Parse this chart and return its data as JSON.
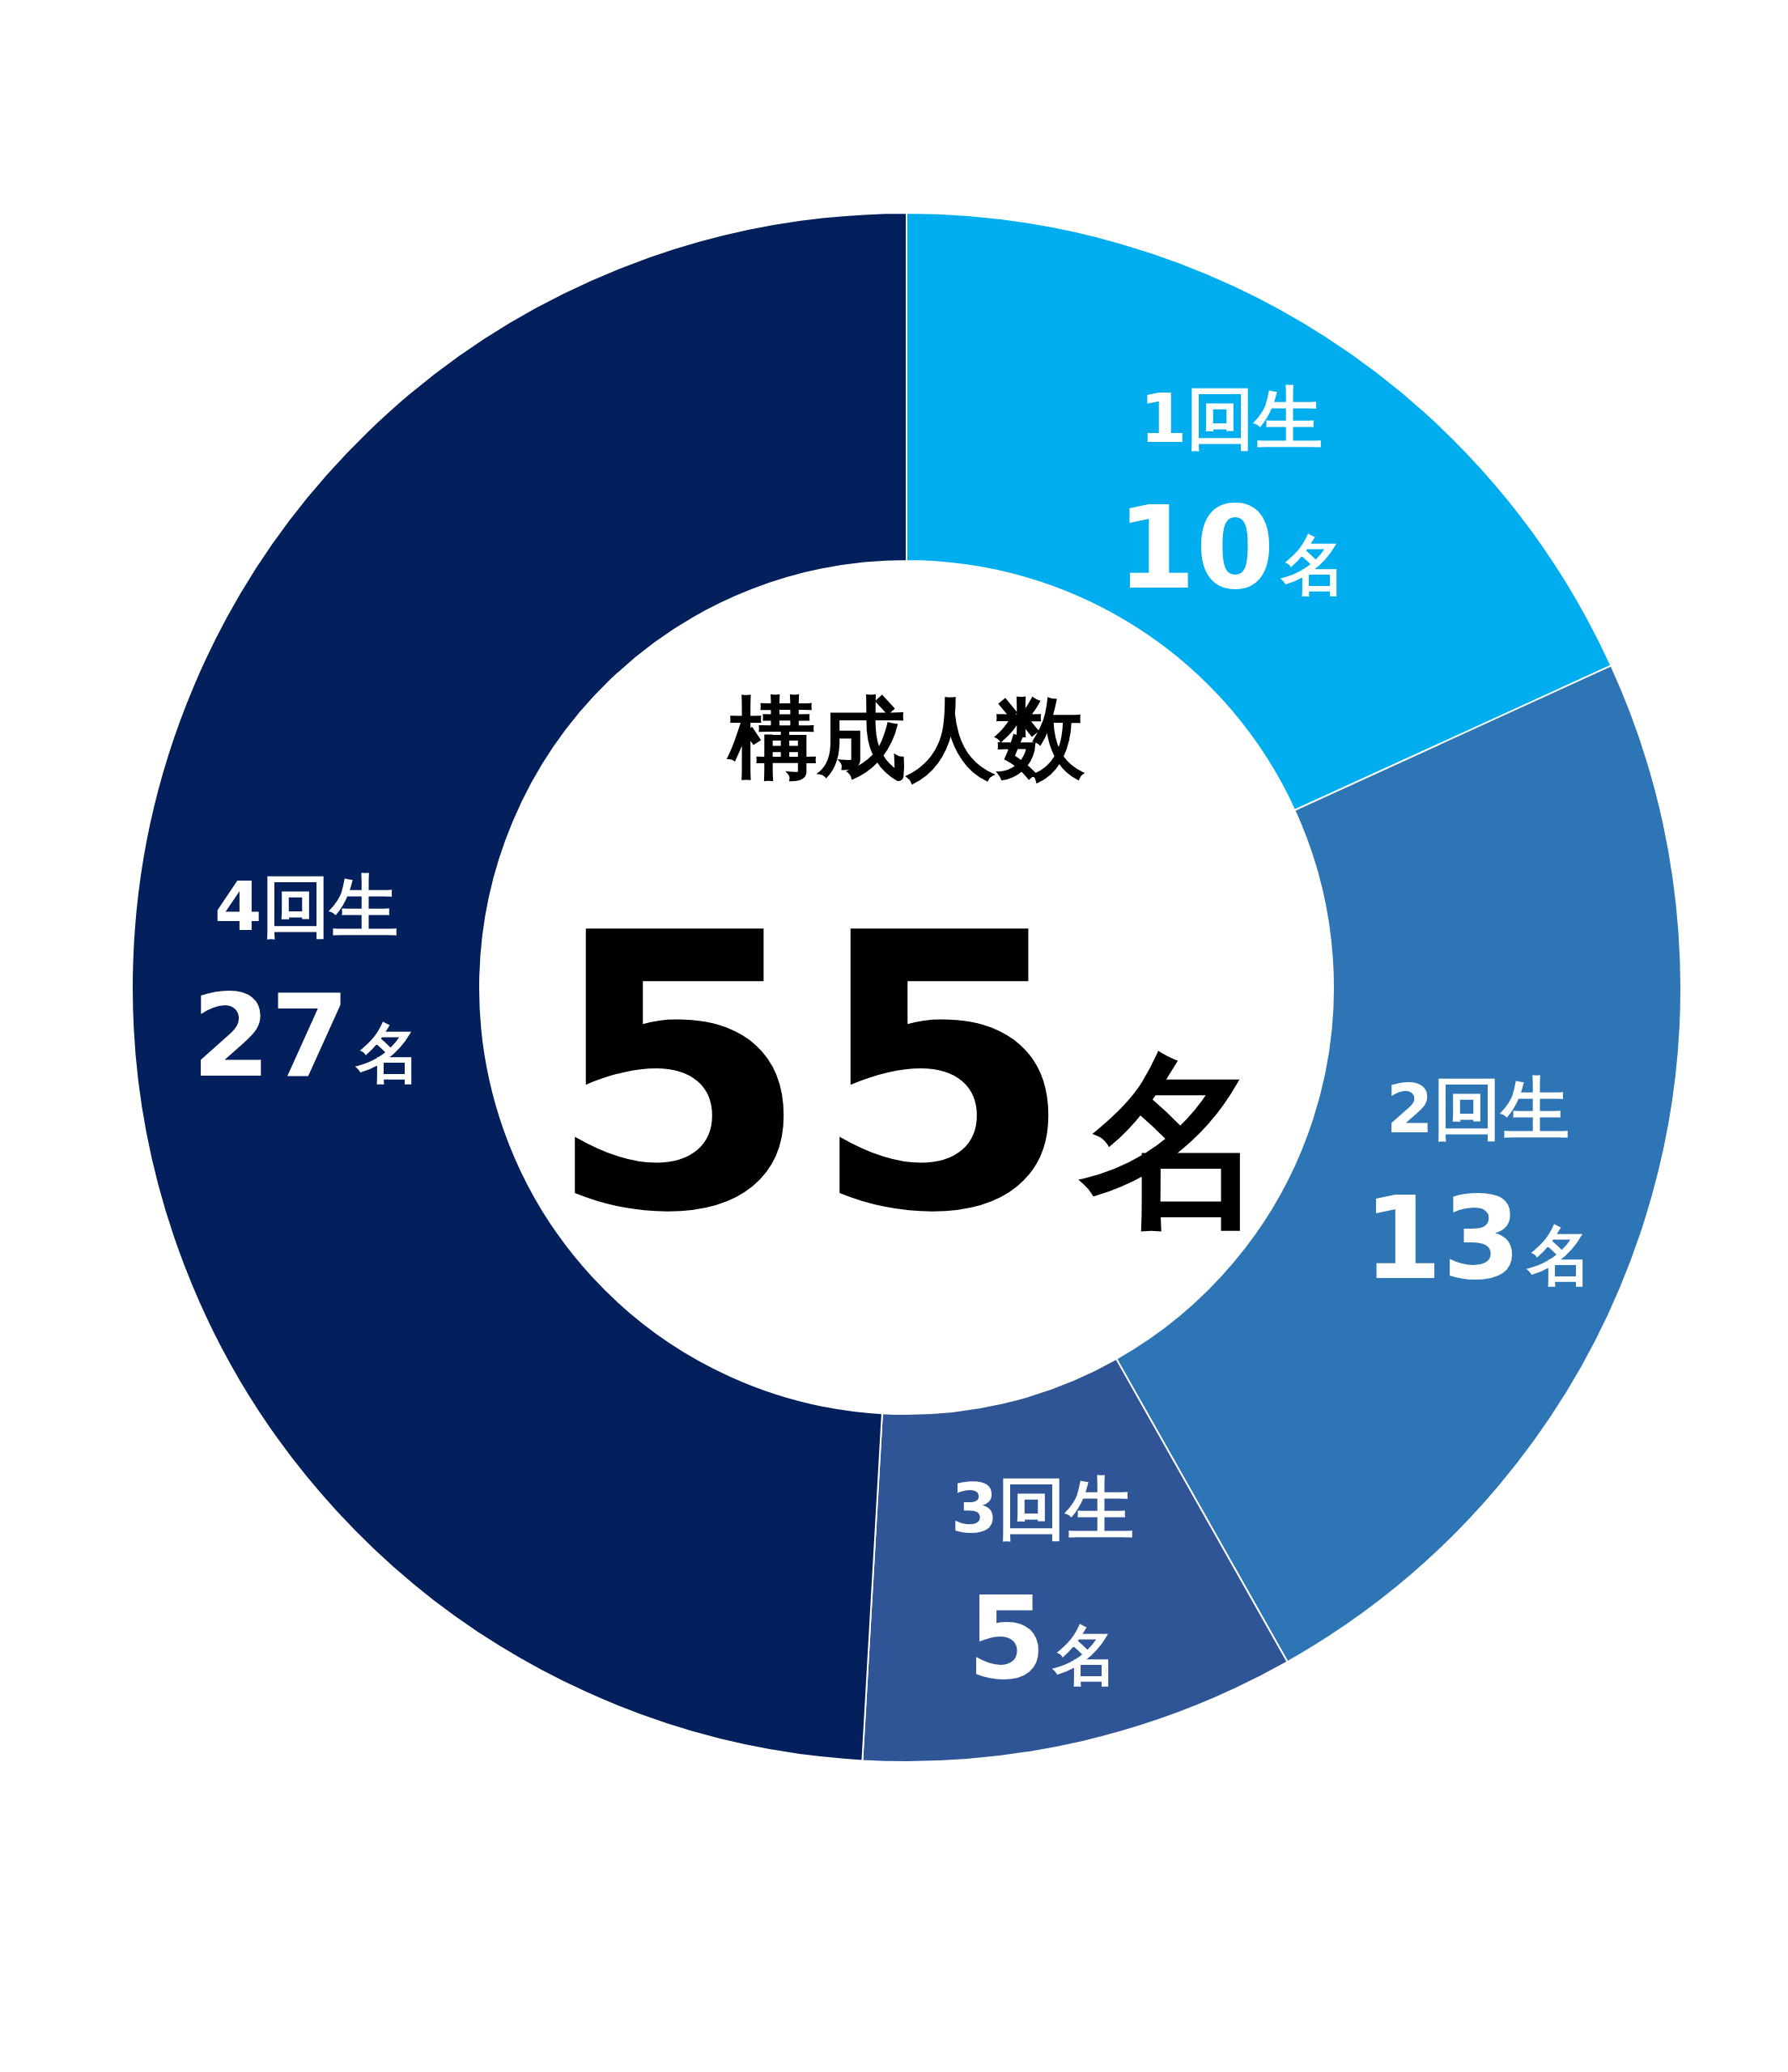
{
  "chart_data": {
    "type": "donut",
    "title": "構成人数",
    "annotations": [
      "55名"
    ],
    "categories": [
      "1回生",
      "2回生",
      "3回生",
      "4回生"
    ],
    "values": [
      10,
      13,
      5,
      27
    ],
    "colors": [
      "#00aeef",
      "#2e75b6",
      "#2f5597",
      "#03205c"
    ],
    "value_labels": [
      "10名",
      "13名",
      "5名",
      "27名"
    ]
  }
}
